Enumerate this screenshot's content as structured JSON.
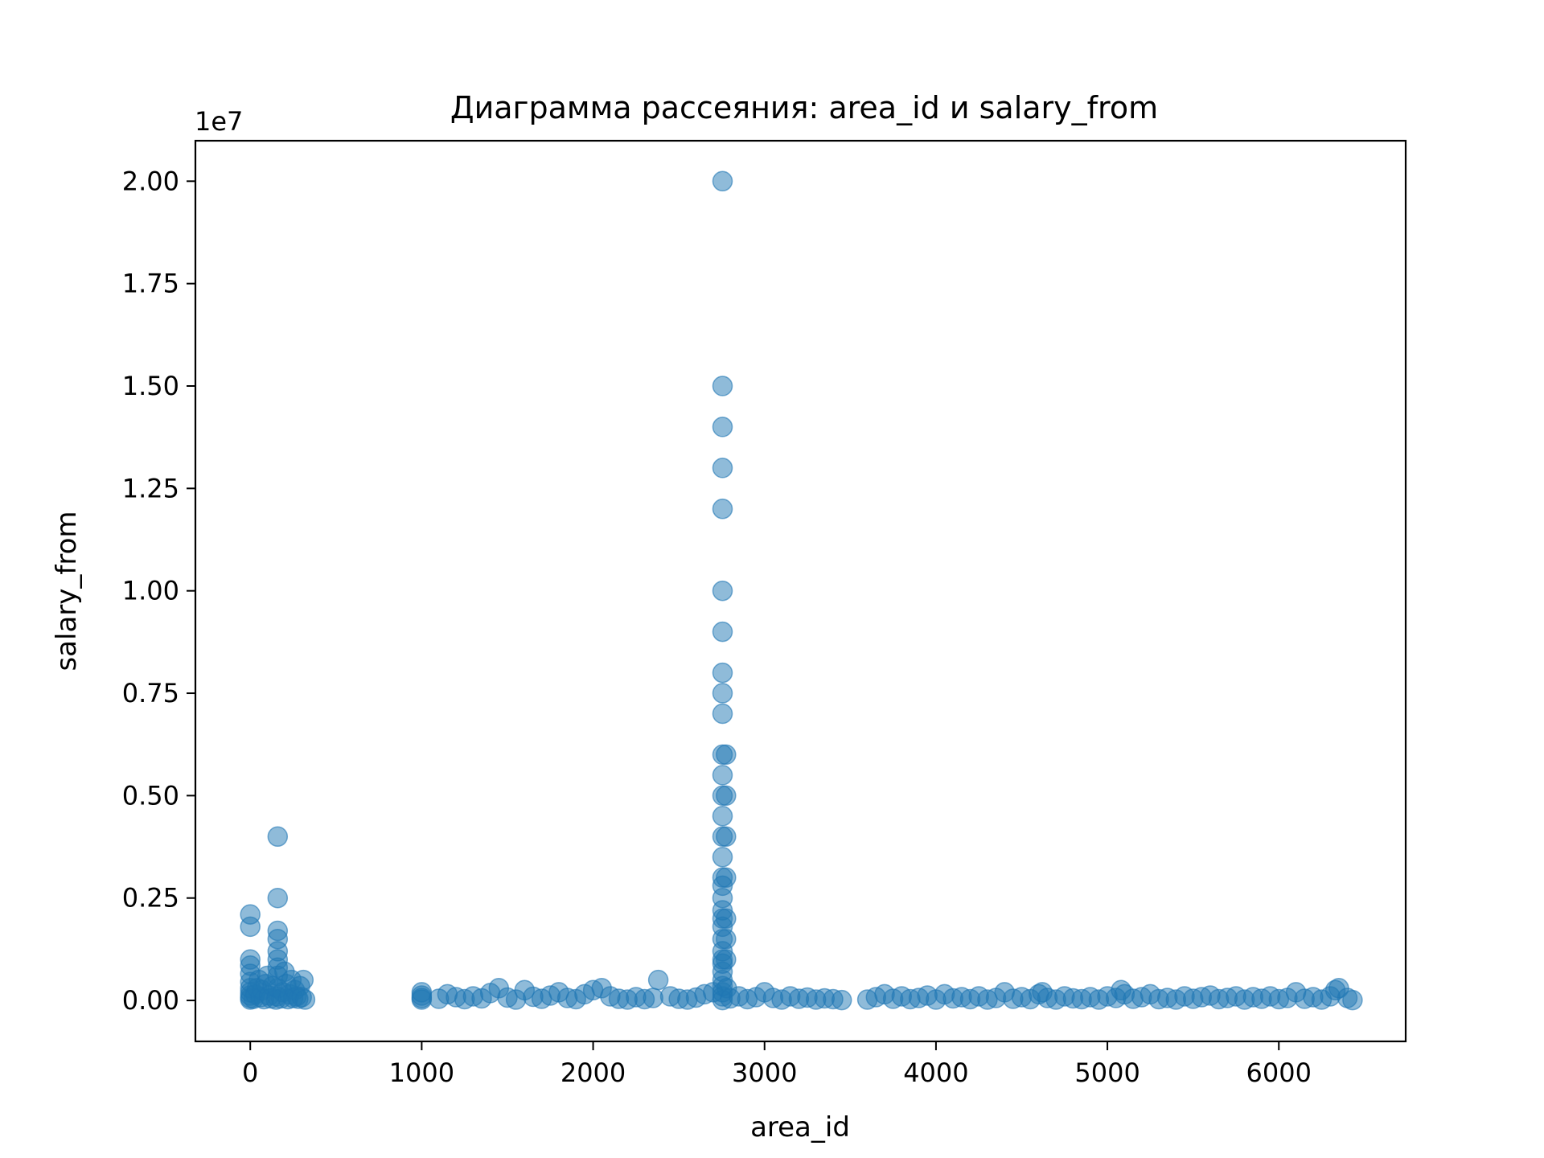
{
  "chart_data": {
    "type": "scatter",
    "title": "Диаграмма рассеяния: area_id и salary_from",
    "xlabel": "area_id",
    "ylabel": "salary_from",
    "y_offset_label": "1e7",
    "xlim": [
      -320,
      6740
    ],
    "ylim": [
      -1000000,
      20988000
    ],
    "x_ticks": [
      0,
      1000,
      2000,
      3000,
      4000,
      5000,
      6000
    ],
    "x_tick_labels": [
      "0",
      "1000",
      "2000",
      "3000",
      "4000",
      "5000",
      "6000"
    ],
    "y_ticks": [
      0,
      2500000,
      5000000,
      7500000,
      10000000,
      12500000,
      15000000,
      17500000,
      20000000
    ],
    "y_tick_labels": [
      "0.00",
      "0.25",
      "0.50",
      "0.75",
      "1.00",
      "1.25",
      "1.50",
      "1.75",
      "2.00"
    ],
    "grid": false,
    "legend": "none",
    "marker_color": "#1f77b4",
    "marker_alpha": 0.5,
    "series": [
      {
        "points": [
          [
            0,
            20000
          ],
          [
            0,
            60000
          ],
          [
            0,
            120000
          ],
          [
            0,
            200000
          ],
          [
            0,
            300000
          ],
          [
            0,
            450000
          ],
          [
            0,
            650000
          ],
          [
            0,
            850000
          ],
          [
            0,
            1000000
          ],
          [
            0,
            1800000
          ],
          [
            0,
            2100000
          ],
          [
            20,
            40000
          ],
          [
            30,
            150000
          ],
          [
            40,
            300000
          ],
          [
            50,
            500000
          ],
          [
            60,
            80000
          ],
          [
            70,
            250000
          ],
          [
            80,
            30000
          ],
          [
            90,
            400000
          ],
          [
            100,
            600000
          ],
          [
            110,
            120000
          ],
          [
            120,
            50000
          ],
          [
            130,
            350000
          ],
          [
            150,
            20000
          ],
          [
            155,
            100000
          ],
          [
            160,
            300000
          ],
          [
            160,
            600000
          ],
          [
            160,
            800000
          ],
          [
            160,
            1000000
          ],
          [
            160,
            1200000
          ],
          [
            160,
            1500000
          ],
          [
            160,
            1700000
          ],
          [
            160,
            2500000
          ],
          [
            160,
            4000000
          ],
          [
            180,
            50000
          ],
          [
            190,
            200000
          ],
          [
            200,
            700000
          ],
          [
            210,
            400000
          ],
          [
            220,
            30000
          ],
          [
            230,
            150000
          ],
          [
            240,
            500000
          ],
          [
            250,
            60000
          ],
          [
            260,
            250000
          ],
          [
            270,
            100000
          ],
          [
            280,
            40000
          ],
          [
            290,
            350000
          ],
          [
            300,
            80000
          ],
          [
            310,
            500000
          ],
          [
            320,
            20000
          ],
          [
            1000,
            20000
          ],
          [
            1000,
            60000
          ],
          [
            1000,
            120000
          ],
          [
            1000,
            200000
          ],
          [
            1100,
            40000
          ],
          [
            1150,
            150000
          ],
          [
            1200,
            80000
          ],
          [
            1250,
            30000
          ],
          [
            1300,
            100000
          ],
          [
            1350,
            50000
          ],
          [
            1400,
            180000
          ],
          [
            1450,
            300000
          ],
          [
            1500,
            70000
          ],
          [
            1550,
            20000
          ],
          [
            1600,
            250000
          ],
          [
            1650,
            90000
          ],
          [
            1700,
            40000
          ],
          [
            1750,
            120000
          ],
          [
            1800,
            200000
          ],
          [
            1850,
            60000
          ],
          [
            1900,
            30000
          ],
          [
            1950,
            150000
          ],
          [
            2000,
            250000
          ],
          [
            2050,
            300000
          ],
          [
            2100,
            100000
          ],
          [
            2150,
            40000
          ],
          [
            2200,
            20000
          ],
          [
            2250,
            80000
          ],
          [
            2300,
            30000
          ],
          [
            2350,
            60000
          ],
          [
            2380,
            500000
          ],
          [
            2450,
            100000
          ],
          [
            2500,
            40000
          ],
          [
            2550,
            20000
          ],
          [
            2600,
            70000
          ],
          [
            2650,
            150000
          ],
          [
            2700,
            200000
          ],
          [
            2755,
            10000
          ],
          [
            2755,
            100000
          ],
          [
            2755,
            200000
          ],
          [
            2755,
            350000
          ],
          [
            2755,
            500000
          ],
          [
            2755,
            700000
          ],
          [
            2755,
            900000
          ],
          [
            2755,
            1000000
          ],
          [
            2755,
            1200000
          ],
          [
            2755,
            1500000
          ],
          [
            2755,
            1800000
          ],
          [
            2755,
            2000000
          ],
          [
            2755,
            2200000
          ],
          [
            2755,
            2500000
          ],
          [
            2755,
            2800000
          ],
          [
            2755,
            3000000
          ],
          [
            2755,
            3500000
          ],
          [
            2755,
            4000000
          ],
          [
            2755,
            4500000
          ],
          [
            2755,
            5000000
          ],
          [
            2755,
            5500000
          ],
          [
            2755,
            6000000
          ],
          [
            2755,
            7000000
          ],
          [
            2755,
            7500000
          ],
          [
            2755,
            8000000
          ],
          [
            2755,
            9000000
          ],
          [
            2755,
            10000000
          ],
          [
            2755,
            12000000
          ],
          [
            2755,
            13000000
          ],
          [
            2755,
            14000000
          ],
          [
            2755,
            15000000
          ],
          [
            2755,
            20000000
          ],
          [
            2775,
            1000000
          ],
          [
            2775,
            1500000
          ],
          [
            2775,
            2000000
          ],
          [
            2775,
            3000000
          ],
          [
            2775,
            4000000
          ],
          [
            2775,
            5000000
          ],
          [
            2775,
            6000000
          ],
          [
            2780,
            300000
          ],
          [
            2800,
            50000
          ],
          [
            2850,
            100000
          ],
          [
            2900,
            30000
          ],
          [
            2950,
            80000
          ],
          [
            3000,
            200000
          ],
          [
            3050,
            60000
          ],
          [
            3100,
            20000
          ],
          [
            3150,
            100000
          ],
          [
            3200,
            40000
          ],
          [
            3250,
            70000
          ],
          [
            3300,
            20000
          ],
          [
            3350,
            50000
          ],
          [
            3400,
            30000
          ],
          [
            3450,
            10000
          ],
          [
            3600,
            20000
          ],
          [
            3650,
            80000
          ],
          [
            3700,
            150000
          ],
          [
            3750,
            40000
          ],
          [
            3800,
            100000
          ],
          [
            3850,
            30000
          ],
          [
            3900,
            60000
          ],
          [
            3950,
            120000
          ],
          [
            4000,
            20000
          ],
          [
            4050,
            150000
          ],
          [
            4100,
            50000
          ],
          [
            4150,
            80000
          ],
          [
            4200,
            30000
          ],
          [
            4250,
            100000
          ],
          [
            4300,
            20000
          ],
          [
            4350,
            60000
          ],
          [
            4400,
            200000
          ],
          [
            4450,
            40000
          ],
          [
            4500,
            80000
          ],
          [
            4550,
            30000
          ],
          [
            4600,
            150000
          ],
          [
            4620,
            200000
          ],
          [
            4650,
            60000
          ],
          [
            4700,
            20000
          ],
          [
            4750,
            100000
          ],
          [
            4800,
            50000
          ],
          [
            4850,
            30000
          ],
          [
            4900,
            80000
          ],
          [
            4950,
            20000
          ],
          [
            5000,
            100000
          ],
          [
            5050,
            60000
          ],
          [
            5080,
            250000
          ],
          [
            5100,
            150000
          ],
          [
            5150,
            40000
          ],
          [
            5200,
            80000
          ],
          [
            5250,
            150000
          ],
          [
            5300,
            30000
          ],
          [
            5350,
            60000
          ],
          [
            5400,
            20000
          ],
          [
            5450,
            100000
          ],
          [
            5500,
            40000
          ],
          [
            5550,
            80000
          ],
          [
            5600,
            120000
          ],
          [
            5650,
            30000
          ],
          [
            5700,
            60000
          ],
          [
            5750,
            100000
          ],
          [
            5800,
            20000
          ],
          [
            5850,
            80000
          ],
          [
            5900,
            40000
          ],
          [
            5950,
            100000
          ],
          [
            6000,
            30000
          ],
          [
            6050,
            60000
          ],
          [
            6100,
            200000
          ],
          [
            6150,
            40000
          ],
          [
            6200,
            80000
          ],
          [
            6250,
            20000
          ],
          [
            6300,
            100000
          ],
          [
            6330,
            250000
          ],
          [
            6350,
            300000
          ],
          [
            6400,
            60000
          ],
          [
            6430,
            10000
          ]
        ]
      }
    ]
  }
}
